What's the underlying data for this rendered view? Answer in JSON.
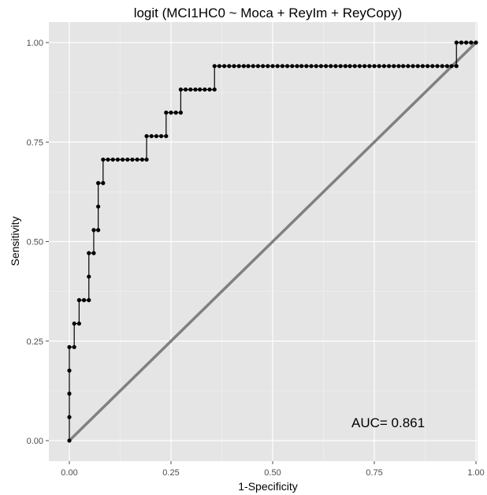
{
  "chart_data": {
    "type": "line",
    "title": "logit (MCI1HC0 ~ Moca + ReyIm + ReyCopy)",
    "xlabel": "1-Specificity",
    "ylabel": "Sensitivity",
    "xlim": [
      0,
      1
    ],
    "ylim": [
      0,
      1
    ],
    "x_ticks": [
      "0.00",
      "0.25",
      "0.50",
      "0.75",
      "1.00"
    ],
    "y_ticks": [
      "0.00",
      "0.25",
      "0.50",
      "0.75",
      "1.00"
    ],
    "grid": true,
    "annotation": "AUC= 0.861",
    "series": [
      {
        "values": [
          [
            0.0,
            0.0
          ],
          [
            0.0,
            0.059
          ],
          [
            0.0,
            0.118
          ],
          [
            0.0,
            0.176
          ],
          [
            0.0,
            0.235
          ],
          [
            0.012,
            0.235
          ],
          [
            0.012,
            0.294
          ],
          [
            0.024,
            0.294
          ],
          [
            0.024,
            0.353
          ],
          [
            0.036,
            0.353
          ],
          [
            0.048,
            0.353
          ],
          [
            0.048,
            0.412
          ],
          [
            0.048,
            0.471
          ],
          [
            0.06,
            0.471
          ],
          [
            0.06,
            0.529
          ],
          [
            0.071,
            0.529
          ],
          [
            0.071,
            0.588
          ],
          [
            0.071,
            0.647
          ],
          [
            0.083,
            0.647
          ],
          [
            0.083,
            0.706
          ],
          [
            0.095,
            0.706
          ],
          [
            0.107,
            0.706
          ],
          [
            0.119,
            0.706
          ],
          [
            0.131,
            0.706
          ],
          [
            0.143,
            0.706
          ],
          [
            0.155,
            0.706
          ],
          [
            0.167,
            0.706
          ],
          [
            0.179,
            0.706
          ],
          [
            0.19,
            0.706
          ],
          [
            0.19,
            0.765
          ],
          [
            0.202,
            0.765
          ],
          [
            0.214,
            0.765
          ],
          [
            0.226,
            0.765
          ],
          [
            0.238,
            0.765
          ],
          [
            0.238,
            0.824
          ],
          [
            0.25,
            0.824
          ],
          [
            0.262,
            0.824
          ],
          [
            0.274,
            0.824
          ],
          [
            0.274,
            0.882
          ],
          [
            0.286,
            0.882
          ],
          [
            0.298,
            0.882
          ],
          [
            0.31,
            0.882
          ],
          [
            0.321,
            0.882
          ],
          [
            0.333,
            0.882
          ],
          [
            0.345,
            0.882
          ],
          [
            0.357,
            0.882
          ],
          [
            0.357,
            0.941
          ],
          [
            0.369,
            0.941
          ],
          [
            0.381,
            0.941
          ],
          [
            0.393,
            0.941
          ],
          [
            0.405,
            0.941
          ],
          [
            0.417,
            0.941
          ],
          [
            0.429,
            0.941
          ],
          [
            0.44,
            0.941
          ],
          [
            0.452,
            0.941
          ],
          [
            0.464,
            0.941
          ],
          [
            0.476,
            0.941
          ],
          [
            0.488,
            0.941
          ],
          [
            0.5,
            0.941
          ],
          [
            0.512,
            0.941
          ],
          [
            0.524,
            0.941
          ],
          [
            0.536,
            0.941
          ],
          [
            0.548,
            0.941
          ],
          [
            0.56,
            0.941
          ],
          [
            0.571,
            0.941
          ],
          [
            0.583,
            0.941
          ],
          [
            0.595,
            0.941
          ],
          [
            0.607,
            0.941
          ],
          [
            0.619,
            0.941
          ],
          [
            0.631,
            0.941
          ],
          [
            0.643,
            0.941
          ],
          [
            0.655,
            0.941
          ],
          [
            0.667,
            0.941
          ],
          [
            0.679,
            0.941
          ],
          [
            0.69,
            0.941
          ],
          [
            0.702,
            0.941
          ],
          [
            0.714,
            0.941
          ],
          [
            0.726,
            0.941
          ],
          [
            0.738,
            0.941
          ],
          [
            0.75,
            0.941
          ],
          [
            0.762,
            0.941
          ],
          [
            0.774,
            0.941
          ],
          [
            0.786,
            0.941
          ],
          [
            0.798,
            0.941
          ],
          [
            0.81,
            0.941
          ],
          [
            0.821,
            0.941
          ],
          [
            0.833,
            0.941
          ],
          [
            0.845,
            0.941
          ],
          [
            0.857,
            0.941
          ],
          [
            0.869,
            0.941
          ],
          [
            0.881,
            0.941
          ],
          [
            0.893,
            0.941
          ],
          [
            0.905,
            0.941
          ],
          [
            0.917,
            0.941
          ],
          [
            0.929,
            0.941
          ],
          [
            0.94,
            0.941
          ],
          [
            0.952,
            0.941
          ],
          [
            0.952,
            1.0
          ],
          [
            0.964,
            1.0
          ],
          [
            0.976,
            1.0
          ],
          [
            0.988,
            1.0
          ],
          [
            1.0,
            1.0
          ]
        ]
      }
    ],
    "reference_line": [
      [
        0,
        0
      ],
      [
        1,
        1
      ]
    ],
    "colors": {
      "panel": "#e5e5e5",
      "grid_major": "#ffffff",
      "grid_minor": "#f2f2f2",
      "series": "#000000",
      "reference": "#808080",
      "tick": "#4d4d4d"
    }
  }
}
